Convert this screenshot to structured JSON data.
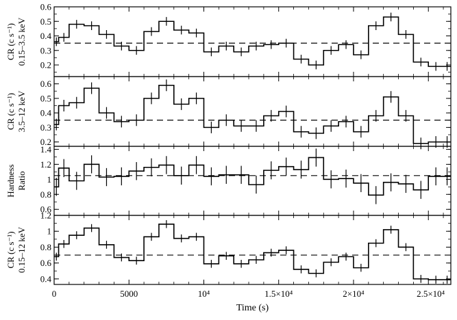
{
  "chart_data": {
    "type": "line",
    "style": "step-histogram with error bars, 4 stacked panels sharing the time axis",
    "xlabel": "Time (s)",
    "xlim": [
      0,
      26500
    ],
    "x_ticks": [
      0,
      5000,
      10000,
      15000,
      20000,
      25000
    ],
    "x_tick_labels": [
      "0",
      "5000",
      "10⁴",
      "1.5×10⁴",
      "2×10⁴",
      "2.5×10⁴"
    ],
    "bin_width": 1000,
    "bin_starts": [
      0,
      300,
      1000,
      2000,
      3000,
      4000,
      5000,
      6000,
      7000,
      8000,
      9000,
      10000,
      11000,
      12000,
      13000,
      14000,
      15000,
      16000,
      17000,
      18000,
      19000,
      20000,
      21000,
      22000,
      23000,
      24000,
      25000,
      26000
    ],
    "panels": [
      {
        "ylabel_line1": "CR (c s⁻¹)",
        "ylabel_line2": "0.15–3.5 keV",
        "ylim": [
          0.12,
          0.6
        ],
        "y_ticks": [
          0.2,
          0.3,
          0.4,
          0.5,
          0.6
        ],
        "y_tick_labels": [
          "0.2",
          "0.3",
          "0.4",
          "0.5",
          "0.6"
        ],
        "mean": 0.35,
        "values": [
          0.36,
          0.39,
          0.48,
          0.47,
          0.41,
          0.33,
          0.3,
          0.43,
          0.5,
          0.44,
          0.42,
          0.29,
          0.33,
          0.29,
          0.33,
          0.34,
          0.35,
          0.24,
          0.2,
          0.3,
          0.34,
          0.27,
          0.47,
          0.53,
          0.41,
          0.22,
          0.19,
          0.19
        ],
        "errors": [
          0.03,
          0.03,
          0.03,
          0.03,
          0.03,
          0.03,
          0.03,
          0.03,
          0.03,
          0.03,
          0.03,
          0.03,
          0.03,
          0.03,
          0.03,
          0.03,
          0.03,
          0.03,
          0.03,
          0.03,
          0.03,
          0.03,
          0.03,
          0.03,
          0.03,
          0.03,
          0.03,
          0.03
        ]
      },
      {
        "ylabel_line1": "CR (c s⁻¹)",
        "ylabel_line2": "3.5–12 keV",
        "ylim": [
          0.17,
          0.65
        ],
        "y_ticks": [
          0.2,
          0.3,
          0.4,
          0.5,
          0.6
        ],
        "y_tick_labels": [
          "0.2",
          "0.3",
          "0.4",
          "0.5",
          "0.6"
        ],
        "mean": 0.35,
        "values": [
          0.32,
          0.45,
          0.47,
          0.57,
          0.4,
          0.34,
          0.35,
          0.5,
          0.59,
          0.46,
          0.5,
          0.3,
          0.35,
          0.31,
          0.31,
          0.38,
          0.41,
          0.27,
          0.26,
          0.31,
          0.34,
          0.27,
          0.38,
          0.51,
          0.38,
          0.19,
          0.2,
          0.2
        ],
        "errors": [
          0.04,
          0.04,
          0.04,
          0.04,
          0.04,
          0.04,
          0.04,
          0.04,
          0.04,
          0.04,
          0.04,
          0.04,
          0.04,
          0.04,
          0.04,
          0.04,
          0.04,
          0.04,
          0.04,
          0.04,
          0.04,
          0.04,
          0.04,
          0.04,
          0.04,
          0.04,
          0.04,
          0.04
        ]
      },
      {
        "ylabel_line1": "Hardness",
        "ylabel_line2": "Ratio",
        "ylim": [
          0.52,
          1.44
        ],
        "y_ticks": [
          0.6,
          0.8,
          1.0,
          1.2,
          1.4
        ],
        "y_tick_labels": [
          "0.6",
          "0.8",
          "1",
          "1.2",
          "1.4"
        ],
        "mean": 1.05,
        "values": [
          0.9,
          1.15,
          0.98,
          1.2,
          1.03,
          1.04,
          1.11,
          1.16,
          1.19,
          1.05,
          1.19,
          1.04,
          1.06,
          1.06,
          0.93,
          1.12,
          1.17,
          1.13,
          1.29,
          1.0,
          1.01,
          0.95,
          0.79,
          0.96,
          0.94,
          0.86,
          1.04,
          1.04
        ],
        "errors": [
          0.12,
          0.12,
          0.12,
          0.12,
          0.12,
          0.12,
          0.12,
          0.12,
          0.12,
          0.12,
          0.12,
          0.12,
          0.12,
          0.12,
          0.12,
          0.12,
          0.12,
          0.12,
          0.12,
          0.12,
          0.12,
          0.12,
          0.12,
          0.12,
          0.12,
          0.12,
          0.12,
          0.12
        ]
      },
      {
        "ylabel_line1": "CR (c s⁻¹)",
        "ylabel_line2": "0.15–12 keV",
        "ylim": [
          0.33,
          1.2
        ],
        "y_ticks": [
          0.4,
          0.6,
          0.8,
          1.0,
          1.2
        ],
        "y_tick_labels": [
          "0.4",
          "0.6",
          "0.8",
          "1",
          "1.2"
        ],
        "mean": 0.7,
        "values": [
          0.68,
          0.84,
          0.95,
          1.04,
          0.83,
          0.67,
          0.63,
          0.93,
          1.09,
          0.91,
          0.93,
          0.59,
          0.69,
          0.59,
          0.64,
          0.73,
          0.76,
          0.52,
          0.47,
          0.61,
          0.68,
          0.54,
          0.85,
          1.02,
          0.8,
          0.4,
          0.39,
          0.39
        ],
        "errors": [
          0.05,
          0.05,
          0.05,
          0.05,
          0.05,
          0.05,
          0.05,
          0.05,
          0.05,
          0.05,
          0.05,
          0.05,
          0.05,
          0.05,
          0.05,
          0.05,
          0.05,
          0.05,
          0.05,
          0.05,
          0.05,
          0.05,
          0.05,
          0.05,
          0.05,
          0.05,
          0.05,
          0.05
        ]
      }
    ]
  }
}
